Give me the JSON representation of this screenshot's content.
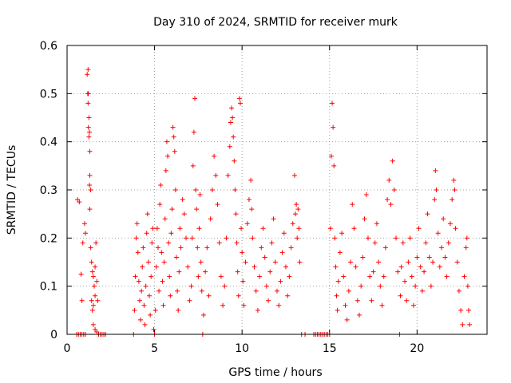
{
  "chart_data": {
    "type": "scatter",
    "title": "Day 310 of 2024, SRMTID for receiver murk",
    "xlabel": "GPS time / hours",
    "ylabel": "SRMTID / TECUs",
    "xlim": [
      0,
      24
    ],
    "ylim": [
      0,
      0.6
    ],
    "x_ticks": [
      0,
      5,
      10,
      15,
      20
    ],
    "y_ticks": [
      0,
      0.1,
      0.2,
      0.3,
      0.4,
      0.5,
      0.6
    ],
    "x_tick_labels": [
      "0",
      "5",
      "10",
      "15",
      "20"
    ],
    "y_tick_labels": [
      "0",
      "0.1",
      "0.2",
      "0.3",
      "0.4",
      "0.5",
      "0.6"
    ],
    "grid": true,
    "marker": "+",
    "series": [
      {
        "name": "SRMTID",
        "color": "#ff0000",
        "points": [
          [
            0.55,
            0.0
          ],
          [
            0.65,
            0.0
          ],
          [
            0.75,
            0.0
          ],
          [
            0.85,
            0.0
          ],
          [
            0.95,
            0.0
          ],
          [
            1.05,
            0.0
          ],
          [
            0.6,
            0.28
          ],
          [
            0.7,
            0.275
          ],
          [
            0.8,
            0.125
          ],
          [
            0.85,
            0.07
          ],
          [
            0.9,
            0.19
          ],
          [
            1.0,
            0.23
          ],
          [
            1.05,
            0.21
          ],
          [
            1.15,
            0.54
          ],
          [
            1.2,
            0.55
          ],
          [
            1.18,
            0.5
          ],
          [
            1.22,
            0.5
          ],
          [
            1.2,
            0.48
          ],
          [
            1.25,
            0.45
          ],
          [
            1.22,
            0.43
          ],
          [
            1.25,
            0.41
          ],
          [
            1.28,
            0.42
          ],
          [
            1.3,
            0.38
          ],
          [
            1.3,
            0.33
          ],
          [
            1.28,
            0.31
          ],
          [
            1.35,
            0.3
          ],
          [
            1.3,
            0.26
          ],
          [
            1.35,
            0.18
          ],
          [
            1.4,
            0.15
          ],
          [
            1.45,
            0.13
          ],
          [
            1.5,
            0.12
          ],
          [
            1.55,
            0.1
          ],
          [
            1.6,
            0.08
          ],
          [
            1.4,
            0.07
          ],
          [
            1.5,
            0.06
          ],
          [
            1.45,
            0.05
          ],
          [
            1.6,
            0.14
          ],
          [
            1.65,
            0.19
          ],
          [
            1.7,
            0.11
          ],
          [
            1.75,
            0.07
          ],
          [
            1.5,
            0.02
          ],
          [
            1.6,
            0.01
          ],
          [
            1.7,
            0.005
          ],
          [
            1.8,
            0.0
          ],
          [
            1.9,
            0.0
          ],
          [
            2.0,
            0.0
          ],
          [
            2.1,
            0.0
          ],
          [
            2.2,
            0.0
          ],
          [
            3.8,
            0.0
          ],
          [
            3.85,
            0.05
          ],
          [
            3.9,
            0.12
          ],
          [
            3.95,
            0.2
          ],
          [
            4.0,
            0.23
          ],
          [
            4.05,
            0.17
          ],
          [
            4.1,
            0.11
          ],
          [
            4.15,
            0.07
          ],
          [
            4.2,
            0.03
          ],
          [
            4.25,
            0.09
          ],
          [
            4.3,
            0.14
          ],
          [
            4.35,
            0.18
          ],
          [
            4.4,
            0.06
          ],
          [
            4.45,
            0.02
          ],
          [
            4.5,
            0.1
          ],
          [
            4.55,
            0.21
          ],
          [
            4.6,
            0.25
          ],
          [
            4.65,
            0.15
          ],
          [
            4.7,
            0.08
          ],
          [
            4.75,
            0.04
          ],
          [
            4.8,
            0.12
          ],
          [
            4.85,
            0.19
          ],
          [
            4.9,
            0.22
          ],
          [
            4.95,
            0.01
          ],
          [
            5.0,
            0.0
          ],
          [
            5.05,
            0.05
          ],
          [
            5.1,
            0.14
          ],
          [
            5.15,
            0.22
          ],
          [
            5.2,
            0.18
          ],
          [
            5.25,
            0.09
          ],
          [
            5.3,
            0.27
          ],
          [
            5.35,
            0.31
          ],
          [
            5.4,
            0.17
          ],
          [
            5.45,
            0.11
          ],
          [
            5.5,
            0.06
          ],
          [
            5.55,
            0.15
          ],
          [
            5.6,
            0.24
          ],
          [
            5.65,
            0.34
          ],
          [
            5.7,
            0.4
          ],
          [
            5.75,
            0.37
          ],
          [
            5.8,
            0.19
          ],
          [
            5.85,
            0.12
          ],
          [
            5.9,
            0.08
          ],
          [
            5.95,
            0.21
          ],
          [
            6.0,
            0.26
          ],
          [
            6.05,
            0.43
          ],
          [
            6.1,
            0.41
          ],
          [
            6.15,
            0.38
          ],
          [
            6.2,
            0.3
          ],
          [
            6.25,
            0.16
          ],
          [
            6.3,
            0.09
          ],
          [
            6.35,
            0.05
          ],
          [
            6.4,
            0.13
          ],
          [
            6.45,
            0.22
          ],
          [
            6.5,
            0.18
          ],
          [
            6.6,
            0.28
          ],
          [
            6.7,
            0.25
          ],
          [
            6.8,
            0.2
          ],
          [
            6.9,
            0.14
          ],
          [
            7.0,
            0.07
          ],
          [
            7.1,
            0.1
          ],
          [
            7.15,
            0.2
          ],
          [
            7.2,
            0.35
          ],
          [
            7.25,
            0.42
          ],
          [
            7.3,
            0.49
          ],
          [
            7.35,
            0.3
          ],
          [
            7.4,
            0.26
          ],
          [
            7.45,
            0.18
          ],
          [
            7.5,
            0.12
          ],
          [
            7.55,
            0.22
          ],
          [
            7.6,
            0.29
          ],
          [
            7.65,
            0.15
          ],
          [
            7.7,
            0.09
          ],
          [
            7.75,
            0.0
          ],
          [
            7.8,
            0.04
          ],
          [
            7.9,
            0.13
          ],
          [
            8.0,
            0.18
          ],
          [
            8.1,
            0.08
          ],
          [
            8.2,
            0.24
          ],
          [
            8.3,
            0.3
          ],
          [
            8.4,
            0.37
          ],
          [
            8.5,
            0.33
          ],
          [
            8.6,
            0.27
          ],
          [
            8.7,
            0.19
          ],
          [
            8.8,
            0.12
          ],
          [
            8.9,
            0.06
          ],
          [
            9.0,
            0.1
          ],
          [
            9.1,
            0.2
          ],
          [
            9.2,
            0.33
          ],
          [
            9.3,
            0.39
          ],
          [
            9.35,
            0.44
          ],
          [
            9.4,
            0.47
          ],
          [
            9.45,
            0.45
          ],
          [
            9.5,
            0.41
          ],
          [
            9.55,
            0.36
          ],
          [
            9.6,
            0.3
          ],
          [
            9.65,
            0.25
          ],
          [
            9.7,
            0.19
          ],
          [
            9.75,
            0.13
          ],
          [
            9.8,
            0.08
          ],
          [
            9.85,
            0.49
          ],
          [
            9.9,
            0.48
          ],
          [
            9.95,
            0.22
          ],
          [
            10.0,
            0.17
          ],
          [
            10.05,
            0.11
          ],
          [
            10.1,
            0.06
          ],
          [
            10.2,
            0.15
          ],
          [
            10.3,
            0.23
          ],
          [
            10.4,
            0.28
          ],
          [
            10.5,
            0.32
          ],
          [
            10.55,
            0.26
          ],
          [
            10.6,
            0.2
          ],
          [
            10.7,
            0.14
          ],
          [
            10.8,
            0.09
          ],
          [
            10.9,
            0.05
          ],
          [
            11.0,
            0.12
          ],
          [
            11.1,
            0.18
          ],
          [
            11.2,
            0.22
          ],
          [
            11.3,
            0.16
          ],
          [
            11.4,
            0.1
          ],
          [
            11.5,
            0.07
          ],
          [
            11.6,
            0.13
          ],
          [
            11.7,
            0.19
          ],
          [
            11.8,
            0.24
          ],
          [
            11.9,
            0.15
          ],
          [
            12.0,
            0.09
          ],
          [
            12.1,
            0.06
          ],
          [
            12.2,
            0.11
          ],
          [
            12.3,
            0.17
          ],
          [
            12.4,
            0.21
          ],
          [
            12.5,
            0.14
          ],
          [
            12.6,
            0.08
          ],
          [
            12.7,
            0.12
          ],
          [
            12.8,
            0.18
          ],
          [
            12.9,
            0.23
          ],
          [
            13.0,
            0.33
          ],
          [
            13.05,
            0.25
          ],
          [
            13.1,
            0.27
          ],
          [
            13.15,
            0.2
          ],
          [
            13.2,
            0.26
          ],
          [
            13.25,
            0.22
          ],
          [
            13.3,
            0.15
          ],
          [
            13.4,
            0.0
          ],
          [
            13.6,
            0.0
          ],
          [
            14.1,
            0.0
          ],
          [
            14.2,
            0.0
          ],
          [
            14.3,
            0.0
          ],
          [
            14.4,
            0.0
          ],
          [
            14.5,
            0.0
          ],
          [
            14.6,
            0.0
          ],
          [
            14.7,
            0.0
          ],
          [
            14.8,
            0.0
          ],
          [
            14.9,
            0.0
          ],
          [
            15.0,
            0.0
          ],
          [
            15.05,
            0.22
          ],
          [
            15.1,
            0.37
          ],
          [
            15.15,
            0.48
          ],
          [
            15.2,
            0.43
          ],
          [
            15.25,
            0.35
          ],
          [
            15.3,
            0.2
          ],
          [
            15.35,
            0.14
          ],
          [
            15.4,
            0.08
          ],
          [
            15.45,
            0.05
          ],
          [
            15.5,
            0.11
          ],
          [
            15.6,
            0.17
          ],
          [
            15.7,
            0.21
          ],
          [
            15.8,
            0.12
          ],
          [
            15.9,
            0.06
          ],
          [
            16.0,
            0.03
          ],
          [
            16.1,
            0.09
          ],
          [
            16.2,
            0.15
          ],
          [
            16.3,
            0.27
          ],
          [
            16.4,
            0.22
          ],
          [
            16.5,
            0.14
          ],
          [
            16.6,
            0.07
          ],
          [
            16.7,
            0.04
          ],
          [
            16.8,
            0.1
          ],
          [
            16.9,
            0.16
          ],
          [
            17.0,
            0.24
          ],
          [
            17.1,
            0.29
          ],
          [
            17.2,
            0.2
          ],
          [
            17.3,
            0.12
          ],
          [
            17.4,
            0.07
          ],
          [
            17.5,
            0.13
          ],
          [
            17.6,
            0.19
          ],
          [
            17.7,
            0.23
          ],
          [
            17.8,
            0.15
          ],
          [
            17.9,
            0.1
          ],
          [
            18.0,
            0.06
          ],
          [
            18.1,
            0.12
          ],
          [
            18.2,
            0.18
          ],
          [
            18.3,
            0.28
          ],
          [
            18.4,
            0.32
          ],
          [
            18.5,
            0.27
          ],
          [
            18.6,
            0.36
          ],
          [
            18.7,
            0.3
          ],
          [
            18.8,
            0.2
          ],
          [
            18.9,
            0.13
          ],
          [
            19.0,
            0.0
          ],
          [
            19.05,
            0.08
          ],
          [
            19.1,
            0.14
          ],
          [
            19.2,
            0.19
          ],
          [
            19.3,
            0.11
          ],
          [
            19.4,
            0.07
          ],
          [
            19.5,
            0.15
          ],
          [
            19.6,
            0.2
          ],
          [
            19.7,
            0.12
          ],
          [
            19.8,
            0.06
          ],
          [
            19.9,
            0.1
          ],
          [
            20.0,
            0.16
          ],
          [
            20.1,
            0.22
          ],
          [
            20.2,
            0.14
          ],
          [
            20.3,
            0.09
          ],
          [
            20.4,
            0.13
          ],
          [
            20.5,
            0.19
          ],
          [
            20.6,
            0.25
          ],
          [
            20.7,
            0.16
          ],
          [
            20.8,
            0.1
          ],
          [
            20.9,
            0.15
          ],
          [
            21.0,
            0.28
          ],
          [
            21.05,
            0.34
          ],
          [
            21.1,
            0.3
          ],
          [
            21.2,
            0.21
          ],
          [
            21.3,
            0.14
          ],
          [
            21.4,
            0.18
          ],
          [
            21.5,
            0.24
          ],
          [
            21.6,
            0.16
          ],
          [
            21.7,
            0.12
          ],
          [
            21.8,
            0.19
          ],
          [
            21.9,
            0.23
          ],
          [
            22.0,
            0.28
          ],
          [
            22.1,
            0.32
          ],
          [
            22.15,
            0.3
          ],
          [
            22.2,
            0.22
          ],
          [
            22.3,
            0.15
          ],
          [
            22.4,
            0.09
          ],
          [
            22.5,
            0.05
          ],
          [
            22.6,
            0.02
          ],
          [
            22.7,
            0.12
          ],
          [
            22.8,
            0.18
          ],
          [
            22.85,
            0.2
          ],
          [
            22.9,
            0.1
          ],
          [
            22.95,
            0.05
          ],
          [
            23.0,
            0.02
          ]
        ]
      }
    ]
  }
}
